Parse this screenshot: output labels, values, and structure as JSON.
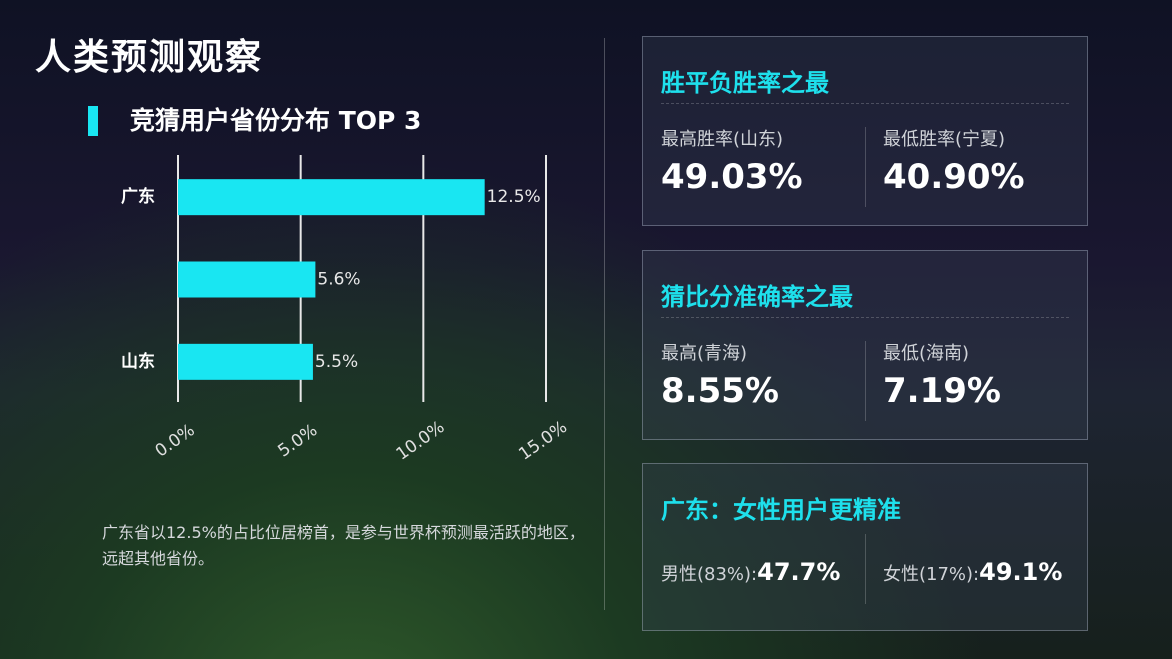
{
  "header": {
    "title": "人类预测观察"
  },
  "chart_data": {
    "type": "bar",
    "orientation": "horizontal",
    "title": "竞猜用户省份分布 TOP 3",
    "categories": [
      "广东",
      null,
      "山东"
    ],
    "values": [
      12.5,
      5.6,
      5.5
    ],
    "value_labels": [
      "12.5%",
      "5.6%",
      "5.5%"
    ],
    "color": "#19e6f2",
    "xlim": [
      0,
      15
    ],
    "xticks": [
      {
        "value": 0,
        "label": "0.0%"
      },
      {
        "value": 5,
        "label": "5.0%"
      },
      {
        "value": 10,
        "label": "10.0%"
      },
      {
        "value": 15,
        "label": "15.0%"
      }
    ],
    "grid": true
  },
  "caption": "广东省以12.5%的占比位居榜首，是参与世界杯预测最活跃的地区，远超其他省份。",
  "panels": [
    {
      "title": "胜平负胜率之最",
      "items": [
        {
          "label": "最高胜率(山东)",
          "value": "49.03%"
        },
        {
          "label": "最低胜率(宁夏)",
          "value": "40.90%"
        }
      ]
    },
    {
      "title": "猜比分准确率之最",
      "items": [
        {
          "label": "最高(青海)",
          "value": "8.55%"
        },
        {
          "label": "最低(海南)",
          "value": "7.19%"
        }
      ]
    },
    {
      "title": "广东：女性用户更精准",
      "items": [
        {
          "label": "男性(83%):",
          "value": "47.7%"
        },
        {
          "label": "女性(17%):",
          "value": "49.1%"
        }
      ]
    }
  ]
}
